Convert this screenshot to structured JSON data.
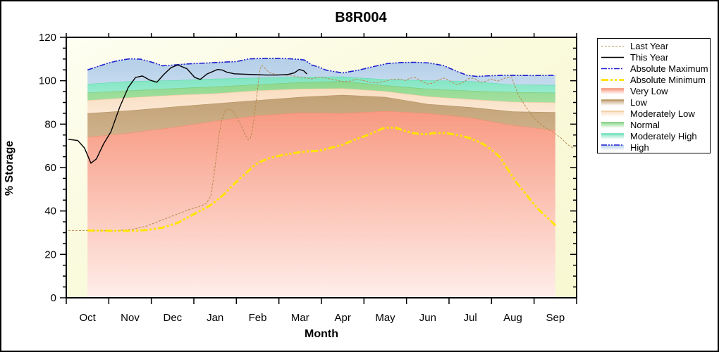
{
  "chart_data": {
    "type": "area",
    "title": "B8R004",
    "xlabel": "Month",
    "ylabel": "% Storage",
    "x_axis": {
      "months": [
        "Oct",
        "Nov",
        "Dec",
        "Jan",
        "Feb",
        "Mar",
        "Apr",
        "May",
        "Jun",
        "Jul",
        "Aug",
        "Sep"
      ]
    },
    "y_axis": {
      "min": 0,
      "max": 120,
      "major_tick": 20,
      "minor_tick": 5,
      "tick_labels": [
        0,
        20,
        40,
        60,
        80,
        100,
        120
      ]
    },
    "plot_background": {
      "color_light": "#fefef2",
      "color_cream": "#f8f8d2"
    },
    "bands": [
      {
        "key": "very_low",
        "name": "Very Low",
        "fill_top": "#f89a82",
        "fill_bottom": "#feeeea",
        "stroke": "#f58d70",
        "upper": [
          74,
          76,
          78.5,
          81.5,
          84,
          85.3,
          85,
          86,
          85,
          83,
          79.5,
          77.2
        ]
      },
      {
        "key": "low",
        "name": "Low",
        "fill_top": "#c2a175",
        "fill_bottom": "#cfb28c",
        "stroke": "#b5925f",
        "upper": [
          85,
          86.3,
          88,
          89.5,
          91,
          92.5,
          93.5,
          92.5,
          89.3,
          87.8,
          85.8,
          85.5
        ]
      },
      {
        "key": "mod_low",
        "name": "Moderately Low",
        "fill_top": "#f9ddc0",
        "fill_bottom": "#fbe8d4",
        "stroke": "#eeca9e",
        "upper": [
          91,
          92.3,
          93.4,
          94.2,
          95.5,
          96.3,
          96.5,
          95.2,
          92.8,
          91.5,
          90.3,
          90
        ]
      },
      {
        "key": "normal",
        "name": "Normal",
        "fill_top": "#8cd88c",
        "fill_bottom": "#a4e0a0",
        "stroke": "#79cc79",
        "upper": [
          94.5,
          95.5,
          96.5,
          97.3,
          98.3,
          99.3,
          99.8,
          97.9,
          96.3,
          95.4,
          94.8,
          94.5
        ]
      },
      {
        "key": "mod_high",
        "name": "Moderately High",
        "fill_top": "#80e4c0",
        "fill_bottom": "#96ebce",
        "stroke": "#5fdcb0",
        "upper": [
          98.5,
          99.8,
          100.2,
          100.9,
          101.4,
          101.8,
          101.9,
          100.6,
          100.2,
          99.8,
          98.2,
          98
        ]
      },
      {
        "key": "high",
        "name": "High",
        "fill_top": "#b4cfe8",
        "fill_bottom": "#c5daee",
        "stroke": null,
        "upper_ref": "abs_max"
      }
    ],
    "lines": {
      "last_year": {
        "name": "Last Year",
        "color": "#b8894f",
        "width": 1,
        "dash": "3 2",
        "points": [
          [
            0.05,
            31
          ],
          [
            0.55,
            31
          ],
          [
            1.13,
            30.8
          ],
          [
            1.54,
            31.5
          ],
          [
            1.88,
            33
          ],
          [
            2.21,
            35.5
          ],
          [
            2.54,
            38
          ],
          [
            2.87,
            40.5
          ],
          [
            3.12,
            42
          ],
          [
            3.29,
            43.4
          ],
          [
            3.4,
            47
          ],
          [
            3.47,
            56
          ],
          [
            3.54,
            67
          ],
          [
            3.6,
            76
          ],
          [
            3.66,
            82
          ],
          [
            3.73,
            85.8
          ],
          [
            3.81,
            87.2
          ],
          [
            3.92,
            86
          ],
          [
            4.02,
            82.8
          ],
          [
            4.12,
            79
          ],
          [
            4.2,
            75.5
          ],
          [
            4.28,
            72.8
          ],
          [
            4.33,
            73.5
          ],
          [
            4.38,
            78
          ],
          [
            4.43,
            85
          ],
          [
            4.48,
            93
          ],
          [
            4.52,
            100
          ],
          [
            4.56,
            105.5
          ],
          [
            4.6,
            107.1
          ],
          [
            4.66,
            106
          ],
          [
            4.73,
            104.5
          ],
          [
            4.81,
            103.5
          ],
          [
            4.95,
            102.8
          ],
          [
            5.11,
            102.6
          ],
          [
            5.28,
            102.5
          ],
          [
            5.45,
            101.8
          ],
          [
            5.61,
            101.3
          ],
          [
            5.78,
            100.9
          ],
          [
            5.94,
            101.7
          ],
          [
            6.11,
            101.2
          ],
          [
            6.32,
            100.4
          ],
          [
            6.49,
            99.6
          ],
          [
            6.66,
            99.8
          ],
          [
            6.82,
            100.6
          ],
          [
            6.99,
            100.1
          ],
          [
            7.15,
            99.3
          ],
          [
            7.32,
            99
          ],
          [
            7.49,
            99.8
          ],
          [
            7.65,
            100.6
          ],
          [
            7.82,
            100.8
          ],
          [
            7.98,
            100.1
          ],
          [
            8.08,
            101.2
          ],
          [
            8.21,
            101.4
          ],
          [
            8.35,
            99.9
          ],
          [
            8.48,
            98.5
          ],
          [
            8.63,
            99
          ],
          [
            8.76,
            100.6
          ],
          [
            8.9,
            101.2
          ],
          [
            9.05,
            99.6
          ],
          [
            9.18,
            98.2
          ],
          [
            9.31,
            99
          ],
          [
            9.46,
            101
          ],
          [
            9.59,
            101.2
          ],
          [
            9.73,
            99.3
          ],
          [
            9.86,
            99.7
          ],
          [
            9.99,
            100.8
          ],
          [
            10.14,
            99.8
          ],
          [
            10.31,
            101.2
          ],
          [
            10.47,
            101.8
          ],
          [
            10.55,
            97.5
          ],
          [
            10.64,
            93.1
          ],
          [
            10.8,
            88.2
          ],
          [
            10.97,
            83.4
          ],
          [
            11.14,
            80.2
          ],
          [
            11.3,
            78
          ],
          [
            11.47,
            76
          ],
          [
            11.63,
            73.7
          ],
          [
            11.8,
            70.4
          ],
          [
            11.92,
            69
          ]
        ]
      },
      "this_year": {
        "name": "This Year",
        "color": "#000000",
        "width": 1.4,
        "dash": null,
        "points": [
          [
            0.05,
            73
          ],
          [
            0.27,
            72.5
          ],
          [
            0.43,
            69
          ],
          [
            0.58,
            62
          ],
          [
            0.71,
            64
          ],
          [
            0.88,
            71
          ],
          [
            1.05,
            76.5
          ],
          [
            1.26,
            88
          ],
          [
            1.46,
            97
          ],
          [
            1.63,
            101.5
          ],
          [
            1.79,
            102.2
          ],
          [
            1.96,
            100.3
          ],
          [
            2.13,
            99.3
          ],
          [
            2.29,
            102.8
          ],
          [
            2.46,
            106
          ],
          [
            2.62,
            107.3
          ],
          [
            2.84,
            105.5
          ],
          [
            3.02,
            101.5
          ],
          [
            3.15,
            100.6
          ],
          [
            3.31,
            103.1
          ],
          [
            3.56,
            105.2
          ],
          [
            3.67,
            104.9
          ],
          [
            3.78,
            103.9
          ],
          [
            3.95,
            103.2
          ],
          [
            4.2,
            103
          ],
          [
            4.45,
            102.8
          ],
          [
            4.7,
            102.6
          ],
          [
            4.95,
            102.6
          ],
          [
            5.19,
            102.8
          ],
          [
            5.36,
            103.6
          ],
          [
            5.48,
            105.2
          ],
          [
            5.58,
            104.6
          ],
          [
            5.66,
            103.1
          ]
        ]
      },
      "abs_max": {
        "name": "Absolute Maximum",
        "color": "#2020d0",
        "width": 1.6,
        "dash": "8 2 2 2 2 2",
        "points": [
          [
            0.5,
            105
          ],
          [
            0.75,
            106.6
          ],
          [
            1,
            108.2
          ],
          [
            1.25,
            109.4
          ],
          [
            1.5,
            110.1
          ],
          [
            1.75,
            109.9
          ],
          [
            2,
            108.6
          ],
          [
            2.26,
            106.9
          ],
          [
            2.5,
            107.2
          ],
          [
            2.75,
            107.6
          ],
          [
            3,
            107.9
          ],
          [
            3.25,
            108.1
          ],
          [
            3.5,
            108.4
          ],
          [
            3.75,
            108.6
          ],
          [
            4,
            108.8
          ],
          [
            4.28,
            110
          ],
          [
            4.5,
            110.2
          ],
          [
            4.75,
            110.3
          ],
          [
            5,
            110.3
          ],
          [
            5.25,
            110.1
          ],
          [
            5.5,
            109.8
          ],
          [
            5.61,
            109.5
          ],
          [
            5.78,
            107.2
          ],
          [
            5.94,
            106.3
          ],
          [
            6.11,
            104.9
          ],
          [
            6.49,
            103.6
          ],
          [
            6.88,
            104.9
          ],
          [
            7.22,
            106.5
          ],
          [
            7.55,
            107.9
          ],
          [
            7.88,
            108.4
          ],
          [
            8.21,
            108.5
          ],
          [
            8.54,
            108.2
          ],
          [
            8.88,
            106.9
          ],
          [
            9.21,
            104.1
          ],
          [
            9.43,
            102.5
          ],
          [
            9.65,
            102
          ],
          [
            9.98,
            102.3
          ],
          [
            10.31,
            102.5
          ],
          [
            11,
            102.4
          ],
          [
            11.5,
            102.5
          ]
        ]
      },
      "abs_min": {
        "name": "Absolute Minimum",
        "color": "#ffe400",
        "width": 3,
        "dash": "10 3 3 3 3 3",
        "points": [
          [
            0.5,
            31
          ],
          [
            1,
            30.9
          ],
          [
            1.46,
            30.8
          ],
          [
            1.88,
            31.2
          ],
          [
            2.26,
            32.3
          ],
          [
            2.62,
            34.5
          ],
          [
            2.95,
            38
          ],
          [
            3.29,
            41.5
          ],
          [
            3.45,
            43.4
          ],
          [
            3.7,
            47.5
          ],
          [
            3.95,
            52.5
          ],
          [
            4.2,
            57
          ],
          [
            4.45,
            61.5
          ],
          [
            4.6,
            63
          ],
          [
            4.8,
            64.5
          ],
          [
            5.1,
            65.8
          ],
          [
            5.4,
            66.8
          ],
          [
            5.7,
            67.5
          ],
          [
            5.94,
            67.7
          ],
          [
            6.2,
            69
          ],
          [
            6.49,
            70.4
          ],
          [
            6.8,
            73
          ],
          [
            7.05,
            74.7
          ],
          [
            7.27,
            76.5
          ],
          [
            7.44,
            78
          ],
          [
            7.6,
            78.5
          ],
          [
            7.77,
            78.2
          ],
          [
            7.97,
            76.8
          ],
          [
            8.17,
            75.8
          ],
          [
            8.43,
            75.3
          ],
          [
            8.66,
            75.9
          ],
          [
            8.9,
            75.9
          ],
          [
            9.11,
            75.3
          ],
          [
            9.29,
            74.6
          ],
          [
            9.48,
            73.6
          ],
          [
            9.66,
            72.2
          ],
          [
            9.83,
            70.5
          ],
          [
            9.99,
            68.3
          ],
          [
            10.19,
            65
          ],
          [
            10.42,
            58
          ],
          [
            10.59,
            53
          ],
          [
            10.76,
            49
          ],
          [
            10.92,
            45
          ],
          [
            11.09,
            41
          ],
          [
            11.25,
            38
          ],
          [
            11.39,
            35.5
          ],
          [
            11.52,
            33
          ]
        ]
      }
    },
    "legend": [
      {
        "label": "Last Year",
        "key": "last_year",
        "type": "line"
      },
      {
        "label": "This Year",
        "key": "this_year",
        "type": "line"
      },
      {
        "label": "Absolute Maximum",
        "key": "abs_max",
        "type": "line"
      },
      {
        "label": "Absolute Minimum",
        "key": "abs_min",
        "type": "line"
      },
      {
        "label": "Very Low",
        "key": "very_low",
        "type": "band"
      },
      {
        "label": "Low",
        "key": "low",
        "type": "band"
      },
      {
        "label": "Moderately Low",
        "key": "mod_low",
        "type": "band"
      },
      {
        "label": "Normal",
        "key": "normal",
        "type": "band"
      },
      {
        "label": "Moderately High",
        "key": "mod_high",
        "type": "band"
      },
      {
        "label": "High",
        "key": "high",
        "type": "band",
        "overlay_line": "abs_max"
      }
    ]
  }
}
